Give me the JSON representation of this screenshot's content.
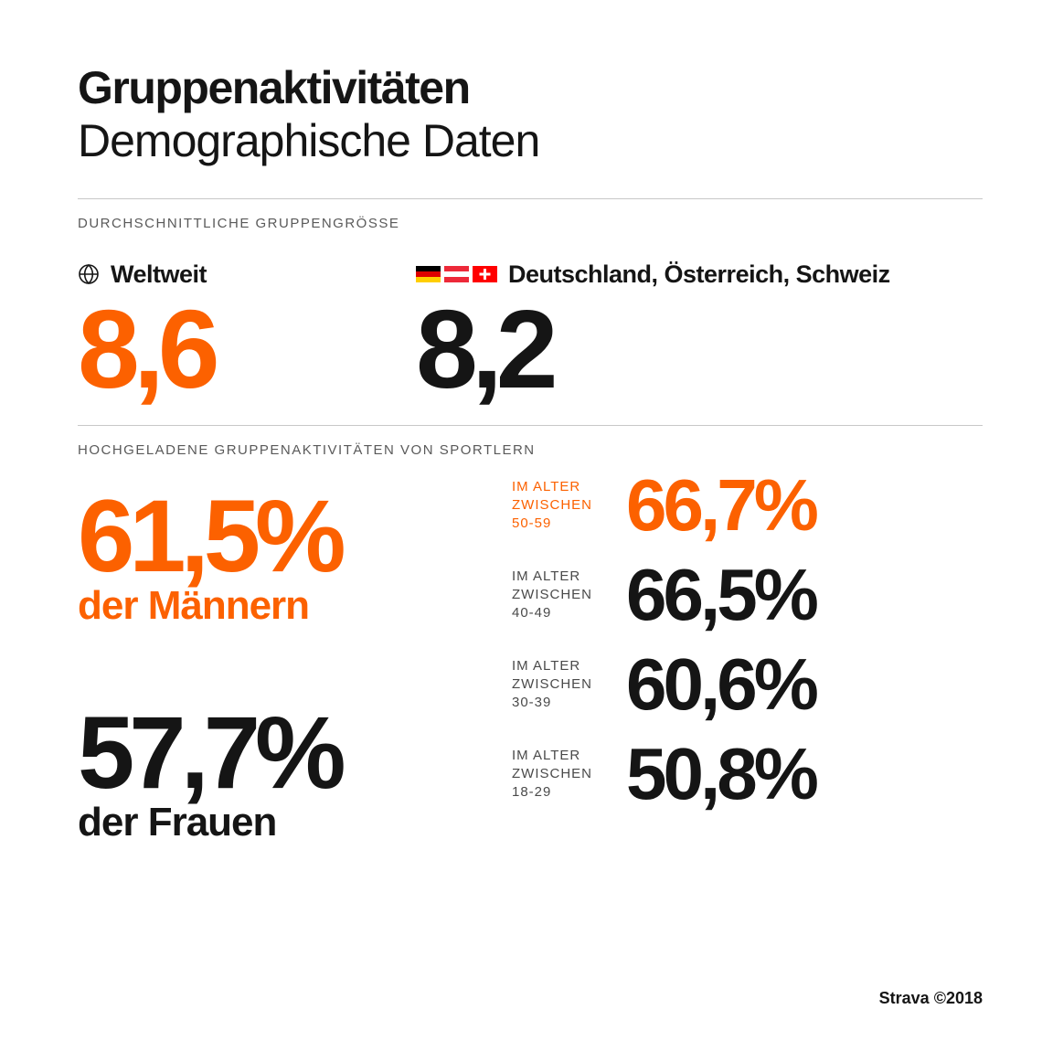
{
  "colors": {
    "orange": "#fc6100",
    "black": "#151515",
    "gray_text": "#5a5a5a",
    "divider": "#c8c8c8",
    "bg": "#ffffff"
  },
  "header": {
    "title": "Gruppenaktivitäten",
    "subtitle": "Demographische Daten"
  },
  "section1": {
    "label": "DURCHSCHNITTLICHE GRUPPENGRÖSSE",
    "world": {
      "title": "Weltweit",
      "value": "8,6"
    },
    "dach": {
      "title": "Deutschland, Österreich, Schweiz",
      "value": "8,2",
      "flags": {
        "germany": [
          "#000000",
          "#dd0000",
          "#ffce00"
        ],
        "austria": [
          "#ed2939",
          "#ffffff",
          "#ed2939"
        ],
        "switzerland": {
          "bg": "#ff0000",
          "cross": "#ffffff"
        }
      }
    }
  },
  "section2": {
    "label": "HOCHGELADENE GRUPPENAKTIVITÄTEN VON SPORTLERN",
    "men": {
      "value": "61,5%",
      "sub": "der Männern"
    },
    "women": {
      "value": "57,7%",
      "sub": "der Frauen"
    },
    "age_label_line1": "IM ALTER",
    "age_label_line2": "ZWISCHEN",
    "ages": [
      {
        "range": "50-59",
        "value": "66,7%",
        "color": "orange"
      },
      {
        "range": "40-49",
        "value": "66,5%",
        "color": "black"
      },
      {
        "range": "30-39",
        "value": "60,6%",
        "color": "black"
      },
      {
        "range": "18-29",
        "value": "50,8%",
        "color": "black"
      }
    ]
  },
  "footer": "Strava ©2018"
}
